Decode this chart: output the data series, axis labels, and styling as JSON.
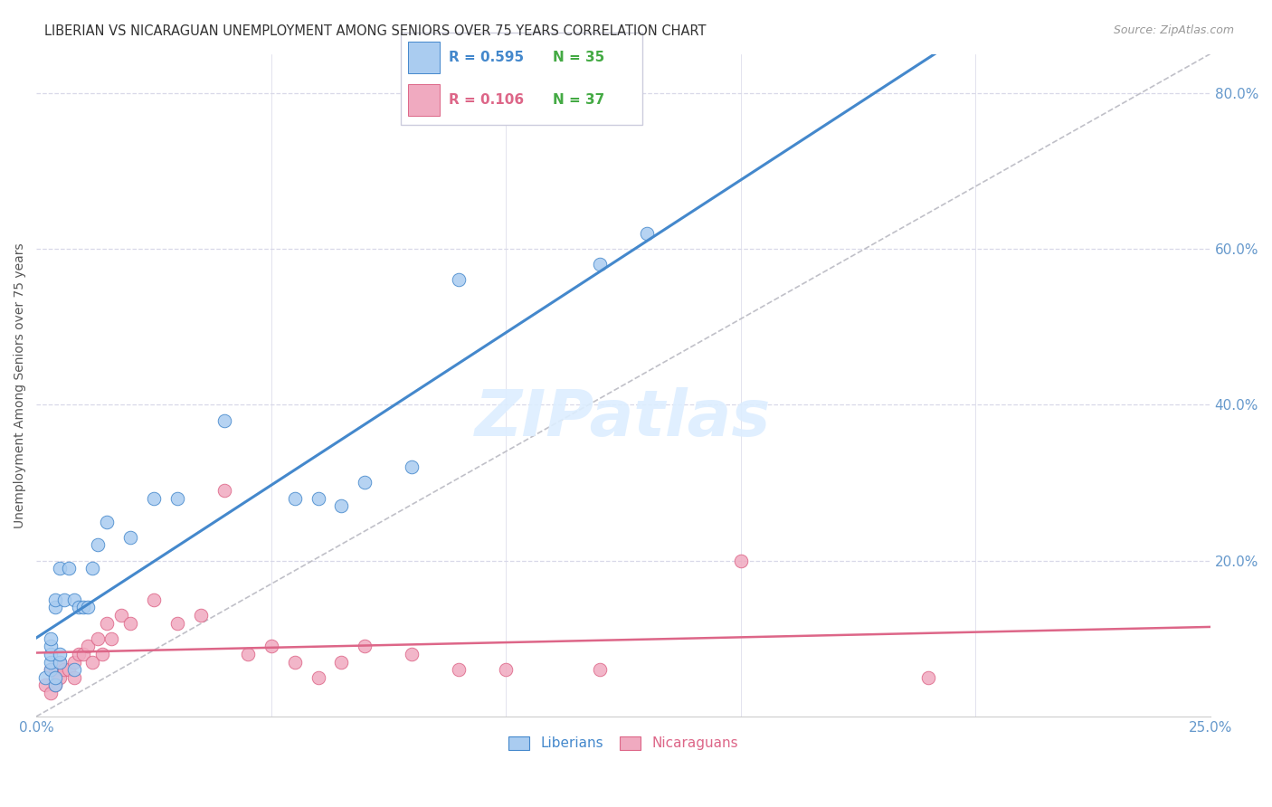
{
  "title": "LIBERIAN VS NICARAGUAN UNEMPLOYMENT AMONG SENIORS OVER 75 YEARS CORRELATION CHART",
  "source": "Source: ZipAtlas.com",
  "ylabel": "Unemployment Among Seniors over 75 years",
  "xlim": [
    0.0,
    0.25
  ],
  "ylim": [
    0.0,
    0.85
  ],
  "yticks": [
    0.2,
    0.4,
    0.6,
    0.8
  ],
  "ytick_labels": [
    "20.0%",
    "40.0%",
    "60.0%",
    "80.0%"
  ],
  "xtick_labels": [
    "0.0%",
    "25.0%"
  ],
  "background_color": "#ffffff",
  "grid_color": "#d8d8e8",
  "liberian_color": "#aaccf0",
  "nicaraguan_color": "#f0aac0",
  "trendline_liberian_color": "#4488cc",
  "trendline_nicaraguan_color": "#dd6688",
  "diagonal_color": "#c0c0c8",
  "liberian_x": [
    0.002,
    0.003,
    0.003,
    0.003,
    0.003,
    0.003,
    0.004,
    0.004,
    0.004,
    0.004,
    0.005,
    0.005,
    0.005,
    0.006,
    0.007,
    0.008,
    0.008,
    0.009,
    0.01,
    0.011,
    0.012,
    0.013,
    0.015,
    0.02,
    0.025,
    0.03,
    0.04,
    0.055,
    0.06,
    0.065,
    0.07,
    0.08,
    0.09,
    0.12,
    0.13
  ],
  "liberian_y": [
    0.05,
    0.06,
    0.07,
    0.08,
    0.09,
    0.1,
    0.04,
    0.05,
    0.14,
    0.15,
    0.07,
    0.08,
    0.19,
    0.15,
    0.19,
    0.06,
    0.15,
    0.14,
    0.14,
    0.14,
    0.19,
    0.22,
    0.25,
    0.23,
    0.28,
    0.28,
    0.38,
    0.28,
    0.28,
    0.27,
    0.3,
    0.32,
    0.56,
    0.58,
    0.62
  ],
  "nicaraguan_x": [
    0.002,
    0.003,
    0.003,
    0.004,
    0.004,
    0.005,
    0.005,
    0.006,
    0.007,
    0.008,
    0.008,
    0.009,
    0.01,
    0.011,
    0.012,
    0.013,
    0.014,
    0.015,
    0.016,
    0.018,
    0.02,
    0.025,
    0.03,
    0.035,
    0.04,
    0.045,
    0.05,
    0.055,
    0.06,
    0.065,
    0.07,
    0.08,
    0.09,
    0.1,
    0.12,
    0.15,
    0.19
  ],
  "nicaraguan_y": [
    0.04,
    0.03,
    0.06,
    0.04,
    0.06,
    0.05,
    0.07,
    0.06,
    0.06,
    0.05,
    0.07,
    0.08,
    0.08,
    0.09,
    0.07,
    0.1,
    0.08,
    0.12,
    0.1,
    0.13,
    0.12,
    0.15,
    0.12,
    0.13,
    0.29,
    0.08,
    0.09,
    0.07,
    0.05,
    0.07,
    0.09,
    0.08,
    0.06,
    0.06,
    0.06,
    0.2,
    0.05
  ],
  "watermark": "ZIPatlas",
  "legend_r1": "R = 0.595",
  "legend_n1": "N = 35",
  "legend_r2": "R = 0.106",
  "legend_n2": "N = 37",
  "legend_color_r1": "#4488cc",
  "legend_color_n1": "#44aa44",
  "legend_color_r2": "#dd6688",
  "legend_color_n2": "#44aa44"
}
